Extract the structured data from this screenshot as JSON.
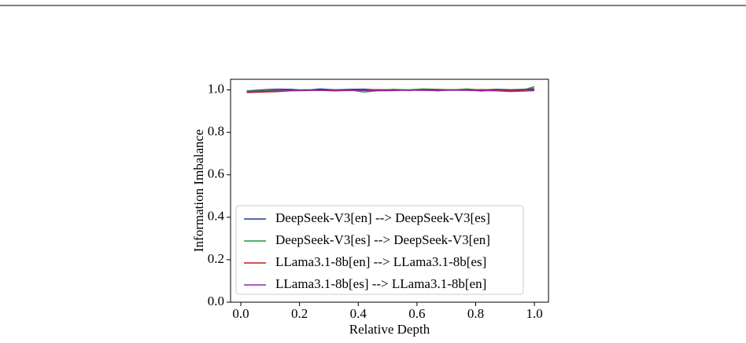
{
  "chart_data": {
    "type": "line",
    "x_label": "Relative Depth",
    "y_label": "Information Imbalance",
    "x": [
      0.02,
      0.07,
      0.12,
      0.17,
      0.22,
      0.27,
      0.32,
      0.37,
      0.42,
      0.47,
      0.52,
      0.57,
      0.62,
      0.67,
      0.72,
      0.77,
      0.82,
      0.87,
      0.92,
      0.97,
      1.0
    ],
    "series": [
      {
        "name": "DeepSeek-V3[en] --> DeepSeek-V3[es]",
        "color": "#1f3a8a",
        "values": [
          0.995,
          1.0,
          1.003,
          1.002,
          0.998,
          1.004,
          1.0,
          1.002,
          1.003,
          0.999,
          1.001,
          0.998,
          1.002,
          0.996,
          1.001,
          1.0,
          0.995,
          1.002,
          0.998,
          1.003,
          1.005
        ]
      },
      {
        "name": "DeepSeek-V3[es] --> DeepSeek-V3[en]",
        "color": "#1e9a3c",
        "values": [
          0.995,
          0.998,
          1.0,
          0.997,
          1.001,
          0.998,
          0.996,
          1.0,
          0.99,
          0.997,
          1.002,
          1.0,
          1.004,
          1.002,
          1.0,
          1.004,
          0.999,
          1.003,
          1.001,
          1.003,
          1.015
        ]
      },
      {
        "name": "LLama3.1-8b[en] --> LLama3.1-8b[es]",
        "color": "#c01a1a",
        "values": [
          0.988,
          0.99,
          0.992,
          0.996,
          0.997,
          0.999,
          1.0,
          0.998,
          1.0,
          1.001,
          1.0,
          0.999,
          1.0,
          1.001,
          1.0,
          1.0,
          1.001,
          1.0,
          0.999,
          1.0,
          1.001
        ]
      },
      {
        "name": "LLama3.1-8b[es] --> LLama3.1-8b[en]",
        "color": "#8e2aa8",
        "values": [
          0.992,
          0.994,
          0.995,
          0.997,
          0.999,
          0.998,
          0.996,
          0.997,
          0.998,
          0.996,
          0.997,
          0.999,
          0.998,
          0.997,
          0.999,
          0.998,
          0.997,
          0.996,
          0.993,
          0.995,
          0.997
        ]
      }
    ],
    "xlim": [
      -0.035,
      1.048
    ],
    "ylim": [
      0,
      1.05
    ],
    "xticks": [
      {
        "value": 0,
        "label": "0.0"
      },
      0.2,
      0.4,
      0.6,
      0.8,
      {
        "value": 1,
        "label": "1.0"
      }
    ],
    "yticks": [
      {
        "value": 0,
        "label": "0.0"
      },
      0.2,
      0.4,
      0.6,
      0.8,
      {
        "value": 1,
        "label": "1.0"
      }
    ],
    "grid": false,
    "legend": "lower left"
  }
}
